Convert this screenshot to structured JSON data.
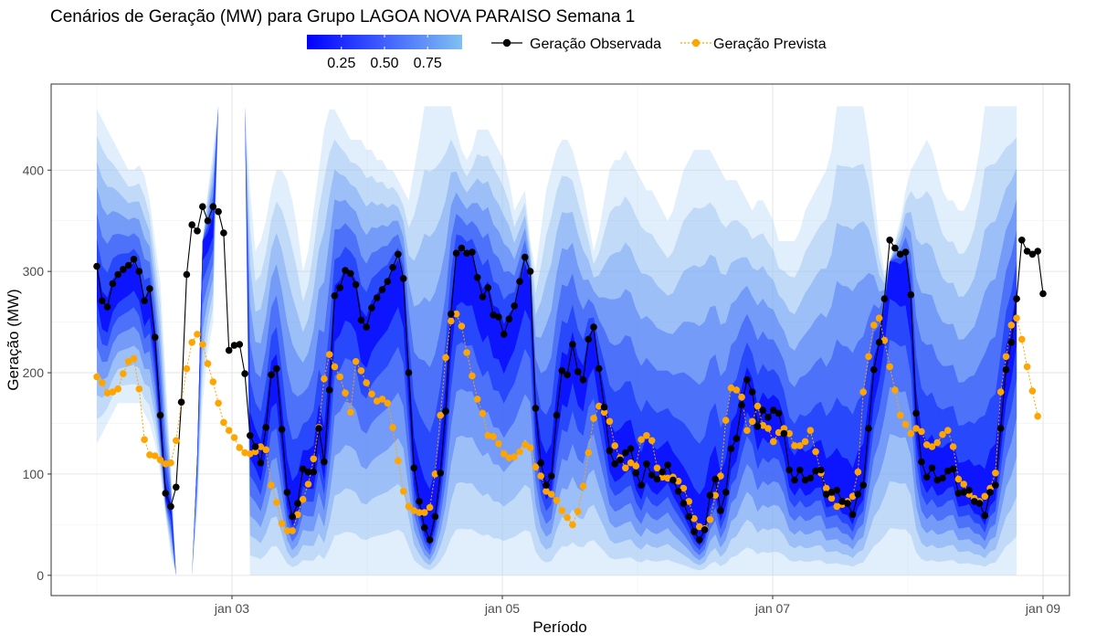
{
  "chart_data": {
    "type": "line",
    "title": "Cenários de Geração (MW) para Grupo LAGOA NOVA PARAISO Semana 1",
    "xlabel": "Período",
    "ylabel": "Geração (MW)",
    "x_range": [
      "2021-01-02 00:00",
      "2021-01-09 04:00"
    ],
    "x_ticks": [
      "jan 03",
      "jan 05",
      "jan 07",
      "jan 09"
    ],
    "y_ticks": [
      0,
      100,
      200,
      300,
      400
    ],
    "ylim": [
      -20,
      485
    ],
    "grid": true,
    "fill_legend": {
      "ticks": [
        "0.25",
        "0.50",
        "0.75"
      ],
      "color_low": "#0000FF",
      "color_high": "#80C0F0"
    },
    "legend_position": "top",
    "band_envelope": {
      "description_values_mw": true,
      "upper": [
        460,
        450,
        440,
        430,
        420,
        410,
        400,
        400,
        405,
        395,
        370,
        330,
        290,
        200,
        110,
        0,
        0,
        0,
        0,
        120,
        330,
        380,
        420,
        463,
        463,
        463,
        463,
        463,
        463,
        380,
        320,
        330,
        350,
        380,
        400,
        400,
        390,
        370,
        340,
        300,
        320,
        360,
        400,
        440,
        460,
        460,
        450,
        440,
        430,
        430,
        430,
        420,
        420,
        410,
        410,
        400,
        400,
        390,
        380,
        370,
        400,
        430,
        463,
        463,
        463,
        463,
        463,
        463,
        440,
        420,
        410,
        420,
        440,
        440,
        440,
        430,
        420,
        410,
        390,
        360,
        370,
        380,
        330,
        300,
        340,
        380,
        400,
        420,
        430,
        430,
        420,
        400,
        380,
        350,
        320,
        340,
        370,
        400,
        410,
        410,
        420,
        410,
        400,
        390,
        380,
        380,
        370,
        360,
        350,
        360,
        380,
        400,
        410,
        420,
        420,
        420,
        420,
        410,
        400,
        390,
        390,
        390,
        380,
        370,
        360,
        370,
        370,
        360,
        350,
        330,
        330,
        330,
        330,
        340,
        360,
        370,
        380,
        390,
        400,
        420,
        463,
        463,
        463,
        463,
        463,
        463,
        430,
        380,
        330,
        300,
        310,
        330,
        350,
        380,
        400,
        410,
        420,
        430,
        420,
        400,
        380,
        370,
        370,
        360,
        360,
        370,
        390,
        420,
        463,
        463,
        463,
        463,
        463,
        463,
        463
      ],
      "lower": [
        130,
        140,
        150,
        160,
        170,
        170,
        170,
        170,
        170,
        160,
        150,
        130,
        100,
        60,
        20,
        0,
        0,
        0,
        0,
        60,
        170,
        220,
        250,
        463,
        463,
        463,
        463,
        463,
        463,
        0,
        0,
        0,
        0,
        0,
        0,
        0,
        0,
        0,
        0,
        0,
        0,
        0,
        0,
        0,
        0,
        0,
        0,
        0,
        0,
        0,
        0,
        0,
        0,
        0,
        0,
        0,
        0,
        0,
        0,
        0,
        0,
        0,
        0,
        0,
        0,
        0,
        0,
        0,
        0,
        0,
        0,
        0,
        0,
        0,
        0,
        0,
        0,
        0,
        0,
        0,
        0,
        0,
        0,
        0,
        0,
        0,
        0,
        0,
        0,
        0,
        0,
        0,
        0,
        0,
        0,
        0,
        0,
        0,
        0,
        0,
        0,
        0,
        0,
        0,
        0,
        0,
        0,
        0,
        0,
        0,
        0,
        0,
        0,
        0,
        0,
        0,
        0,
        0,
        0,
        0,
        0,
        0,
        0,
        0,
        0,
        0,
        0,
        0,
        0,
        0,
        0,
        0,
        0,
        0,
        0,
        0,
        0,
        0,
        0,
        0,
        0,
        0,
        0,
        0,
        0,
        0,
        0,
        0,
        0,
        0,
        0,
        0,
        0,
        0,
        0,
        0,
        0,
        0,
        0,
        0,
        0,
        0,
        0,
        0,
        0,
        0,
        0,
        0,
        0,
        0,
        0,
        0,
        0,
        0,
        0
      ]
    },
    "series": [
      {
        "name": "Geração Observada",
        "color": "#000000",
        "values": [
          305,
          271,
          265,
          288,
          297,
          302,
          306,
          312,
          300,
          271,
          283,
          235,
          158,
          81,
          68,
          87,
          171,
          297,
          346,
          340,
          364,
          350,
          364,
          359,
          338,
          222,
          227,
          228,
          199,
          138,
          127,
          111,
          146,
          198,
          204,
          144,
          82,
          58,
          71,
          105,
          102,
          102,
          145,
          112,
          183,
          276,
          284,
          301,
          298,
          287,
          252,
          245,
          264,
          274,
          282,
          290,
          304,
          317,
          293,
          200,
          106,
          73,
          47,
          35,
          58,
          101,
          162,
          258,
          318,
          323,
          318,
          319,
          294,
          275,
          284,
          257,
          255,
          238,
          253,
          266,
          290,
          314,
          300,
          165,
          111,
          89,
          98,
          158,
          202,
          198,
          228,
          201,
          193,
          233,
          245,
          204,
          166,
          123,
          110,
          114,
          121,
          125,
          101,
          89,
          110,
          99,
          95,
          102,
          109,
          94,
          83,
          71,
          58,
          43,
          35,
          45,
          79,
          95,
          64,
          82,
          125,
          135,
          168,
          193,
          181,
          147,
          163,
          156,
          163,
          160,
          140,
          104,
          94,
          104,
          94,
          96,
          103,
          104,
          80,
          82,
          84,
          73,
          71,
          60,
          80,
          89,
          145,
          203,
          230,
          273,
          331,
          323,
          317,
          319,
          277,
          160,
          112,
          97,
          106,
          94,
          96,
          103,
          105,
          81,
          82,
          84,
          73,
          71,
          59,
          82,
          89,
          145,
          203,
          230,
          273,
          331,
          320,
          317,
          320,
          278
        ]
      },
      {
        "name": "Geração Prevista",
        "color": "#FFA500",
        "values": [
          196,
          190,
          180,
          181,
          184,
          199,
          211,
          214,
          184,
          134,
          119,
          118,
          114,
          110,
          111,
          133,
          171,
          204,
          230,
          238,
          228,
          209,
          191,
          170,
          151,
          143,
          136,
          126,
          121,
          120,
          122,
          127,
          124,
          89,
          72,
          51,
          44,
          44,
          60,
          75,
          90,
          115,
          146,
          194,
          218,
          206,
          196,
          180,
          161,
          211,
          202,
          190,
          179,
          172,
          174,
          170,
          146,
          113,
          83,
          68,
          64,
          62,
          62,
          67,
          100,
          158,
          215,
          251,
          258,
          246,
          220,
          197,
          174,
          160,
          138,
          137,
          130,
          120,
          116,
          117,
          122,
          129,
          126,
          107,
          98,
          83,
          80,
          74,
          64,
          57,
          50,
          63,
          88,
          121,
          155,
          167,
          161,
          152,
          128,
          116,
          106,
          111,
          108,
          134,
          138,
          133,
          106,
          97,
          96,
          97,
          93,
          86,
          73,
          56,
          48,
          46,
          55,
          79,
          98,
          153,
          185,
          183,
          176,
          143,
          152,
          167,
          148,
          145,
          132,
          141,
          145,
          140,
          128,
          128,
          132,
          143,
          122,
          101,
          86,
          76,
          68,
          70,
          73,
          78,
          102,
          181,
          216,
          247,
          254,
          232,
          206,
          183,
          158,
          149,
          140,
          145,
          142,
          129,
          127,
          131,
          139,
          143,
          127,
          95,
          90,
          80,
          76,
          73,
          78,
          86,
          101,
          181,
          216,
          247,
          254,
          233,
          206,
          182,
          157
        ]
      }
    ]
  }
}
